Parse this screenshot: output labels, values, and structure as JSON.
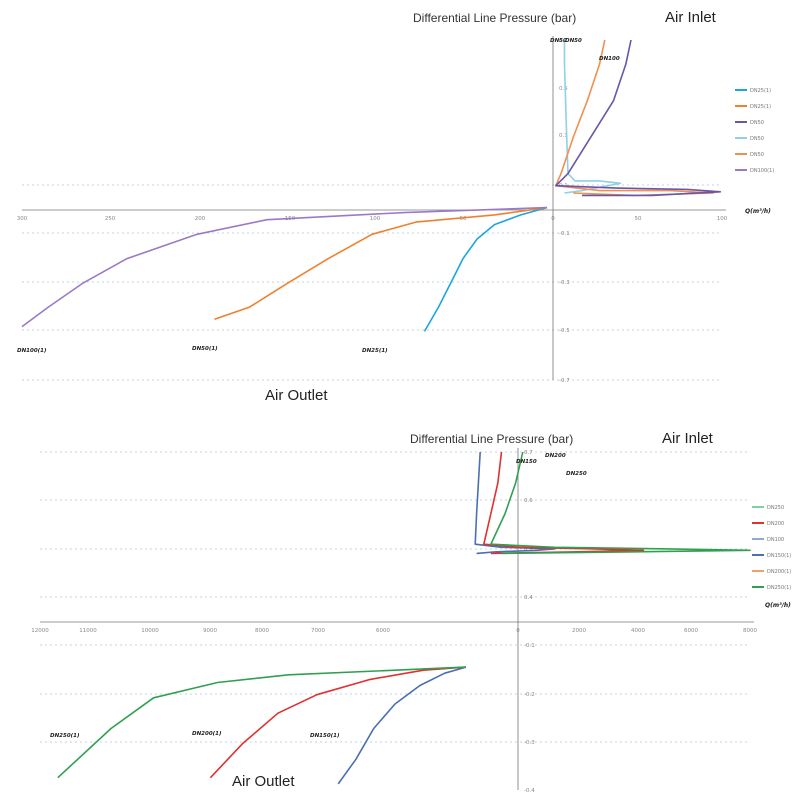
{
  "chart_data": [
    {
      "type": "line",
      "title": "Differential Line Pressure (bar)",
      "annotations": {
        "top": "Air Inlet",
        "bottom": "Air Outlet"
      },
      "xlabel": "Q(m³/h)",
      "ylabel": "",
      "xlim": [
        -300,
        100
      ],
      "ylim": [
        -0.7,
        0.7
      ],
      "x_ticks": [
        "300",
        "250",
        "200",
        "150",
        "100",
        "50",
        "0",
        "50",
        "100"
      ],
      "y_ticks": [
        "0.7",
        "0.5",
        "0.3",
        "0.1",
        "-0.1",
        "-0.3",
        "-0.5",
        "-0.7"
      ],
      "grid": "horizontal dotted",
      "legend_position": "right",
      "series": [
        {
          "name": "DN25(1)",
          "color": "#1aa7e0"
        },
        {
          "name": "DN25(1)",
          "color": "#f08030"
        },
        {
          "name": "DN50",
          "color": "#6a55a8"
        },
        {
          "name": "DN50",
          "color": "#8fd0e8"
        },
        {
          "name": "DN50",
          "color": "#f09050"
        },
        {
          "name": "DN100(1)",
          "color": "#9a7ac8"
        }
      ],
      "curve_labels": [
        {
          "text": "DN50",
          "series": 3
        },
        {
          "text": "DN50",
          "series": 4
        },
        {
          "text": "DN100",
          "series": 2
        },
        {
          "text": "DN100(1)",
          "series": 5
        },
        {
          "text": "DN50(1)",
          "series": 1
        },
        {
          "text": "DN25(1)",
          "series": 0
        }
      ],
      "curves": [
        {
          "series": 3,
          "points": [
            [
              10,
              0.7
            ],
            [
              10,
              0.6
            ],
            [
              11,
              0.35
            ],
            [
              12,
              0.15
            ],
            [
              16,
              0.12
            ],
            [
              30,
              0.12
            ],
            [
              42,
              0.11
            ],
            [
              20,
              0.08
            ],
            [
              10,
              0.07
            ]
          ]
        },
        {
          "series": 4,
          "points": [
            [
              33,
              0.7
            ],
            [
              30,
              0.6
            ],
            [
              23,
              0.45
            ],
            [
              15,
              0.3
            ],
            [
              8,
              0.15
            ],
            [
              5,
              0.1
            ],
            [
              30,
              0.08
            ],
            [
              70,
              0.08
            ],
            [
              95,
              0.07
            ],
            [
              50,
              0.06
            ],
            [
              15,
              0.07
            ]
          ]
        },
        {
          "series": 2,
          "points": [
            [
              48,
              0.7
            ],
            [
              45,
              0.6
            ],
            [
              38,
              0.45
            ],
            [
              25,
              0.3
            ],
            [
              12,
              0.15
            ],
            [
              5,
              0.1
            ],
            [
              40,
              0.09
            ],
            [
              80,
              0.085
            ],
            [
              99,
              0.075
            ],
            [
              60,
              0.06
            ],
            [
              20,
              0.06
            ]
          ]
        },
        {
          "series": 0,
          "points": [
            [
              0,
              0.01
            ],
            [
              -15,
              -0.02
            ],
            [
              -30,
              -0.06
            ],
            [
              -40,
              -0.12
            ],
            [
              -48,
              -0.2
            ],
            [
              -55,
              -0.3
            ],
            [
              -62,
              -0.4
            ],
            [
              -70,
              -0.5
            ]
          ]
        },
        {
          "series": 1,
          "points": [
            [
              0,
              0.01
            ],
            [
              -30,
              -0.02
            ],
            [
              -75,
              -0.05
            ],
            [
              -100,
              -0.1
            ],
            [
              -125,
              -0.2
            ],
            [
              -148,
              -0.3
            ],
            [
              -170,
              -0.4
            ],
            [
              -190,
              -0.45
            ]
          ]
        },
        {
          "series": 5,
          "points": [
            [
              0,
              0.01
            ],
            [
              -80,
              -0.01
            ],
            [
              -160,
              -0.04
            ],
            [
              -200,
              -0.1
            ],
            [
              -240,
              -0.2
            ],
            [
              -265,
              -0.3
            ],
            [
              -285,
              -0.4
            ],
            [
              -300,
              -0.48
            ]
          ]
        }
      ]
    },
    {
      "type": "line",
      "title": "Differential Line Pressure (bar)",
      "annotations": {
        "top": "Air Inlet",
        "bottom": "Air Outlet"
      },
      "xlabel": "Q(m³/h)",
      "ylabel": "",
      "xlim": [
        -12000,
        8000
      ],
      "ylim": [
        -0.4,
        0.7
      ],
      "x_ticks": [
        "12000",
        "11000",
        "10000",
        "9000",
        "8000",
        "7000",
        "6000",
        "0",
        "2000",
        "4000",
        "6000",
        "8000"
      ],
      "y_ticks": [
        "0.7",
        "0.6",
        "0.5",
        "0.4",
        "-0.1",
        "-0.2",
        "-0.3",
        "-0.4"
      ],
      "grid": "horizontal dotted",
      "legend_position": "right",
      "series": [
        {
          "name": "DN250",
          "color": "#80d0a0"
        },
        {
          "name": "DN200",
          "color": "#e03030"
        },
        {
          "name": "DN100",
          "color": "#8fa8d8"
        },
        {
          "name": "DN150(1)",
          "color": "#4a70b0"
        },
        {
          "name": "DN200(1)",
          "color": "#f0a070"
        },
        {
          "name": "DN250(1)",
          "color": "#30a050"
        }
      ],
      "curve_labels": [
        {
          "text": "DN150",
          "series": 3
        },
        {
          "text": "DN200",
          "series": 1
        },
        {
          "text": "DN250",
          "series": 5
        },
        {
          "text": "DN250(1)",
          "series": 5
        },
        {
          "text": "DN200(1)",
          "series": 1
        },
        {
          "text": "DN150(1)",
          "series": 3
        }
      ],
      "curves": [
        {
          "series": 3,
          "points": [
            [
              400,
              0.7
            ],
            [
              350,
              0.6
            ],
            [
              300,
              0.5
            ],
            [
              260,
              0.4
            ],
            [
              1000,
              0.39
            ],
            [
              2500,
              0.385
            ],
            [
              2000,
              0.38
            ],
            [
              800,
              0.375
            ],
            [
              300,
              0.37
            ]
          ]
        },
        {
          "series": 1,
          "points": [
            [
              1000,
              0.7
            ],
            [
              900,
              0.6
            ],
            [
              700,
              0.5
            ],
            [
              500,
              0.4
            ],
            [
              1500,
              0.39
            ],
            [
              3500,
              0.385
            ],
            [
              5000,
              0.38
            ],
            [
              3000,
              0.375
            ],
            [
              700,
              0.37
            ]
          ]
        },
        {
          "series": 5,
          "points": [
            [
              1600,
              0.7
            ],
            [
              1400,
              0.6
            ],
            [
              1100,
              0.5
            ],
            [
              700,
              0.4
            ],
            [
              2500,
              0.39
            ],
            [
              5500,
              0.385
            ],
            [
              8000,
              0.38
            ],
            [
              4500,
              0.375
            ],
            [
              1000,
              0.37
            ]
          ]
        },
        {
          "series": 3,
          "points": [
            [
              0,
              0
            ],
            [
              -600,
              -0.02
            ],
            [
              -1300,
              -0.06
            ],
            [
              -2000,
              -0.12
            ],
            [
              -2600,
              -0.2
            ],
            [
              -3100,
              -0.3
            ],
            [
              -3600,
              -0.38
            ]
          ]
        },
        {
          "series": 1,
          "points": [
            [
              0,
              0
            ],
            [
              -1200,
              -0.01
            ],
            [
              -2700,
              -0.04
            ],
            [
              -4200,
              -0.09
            ],
            [
              -5300,
              -0.15
            ],
            [
              -6300,
              -0.25
            ],
            [
              -7200,
              -0.36
            ]
          ]
        },
        {
          "series": 5,
          "points": [
            [
              0,
              0
            ],
            [
              -2000,
              -0.01
            ],
            [
              -5000,
              -0.025
            ],
            [
              -7000,
              -0.05
            ],
            [
              -8800,
              -0.1
            ],
            [
              -10000,
              -0.2
            ],
            [
              -11500,
              -0.36
            ]
          ]
        }
      ]
    }
  ]
}
